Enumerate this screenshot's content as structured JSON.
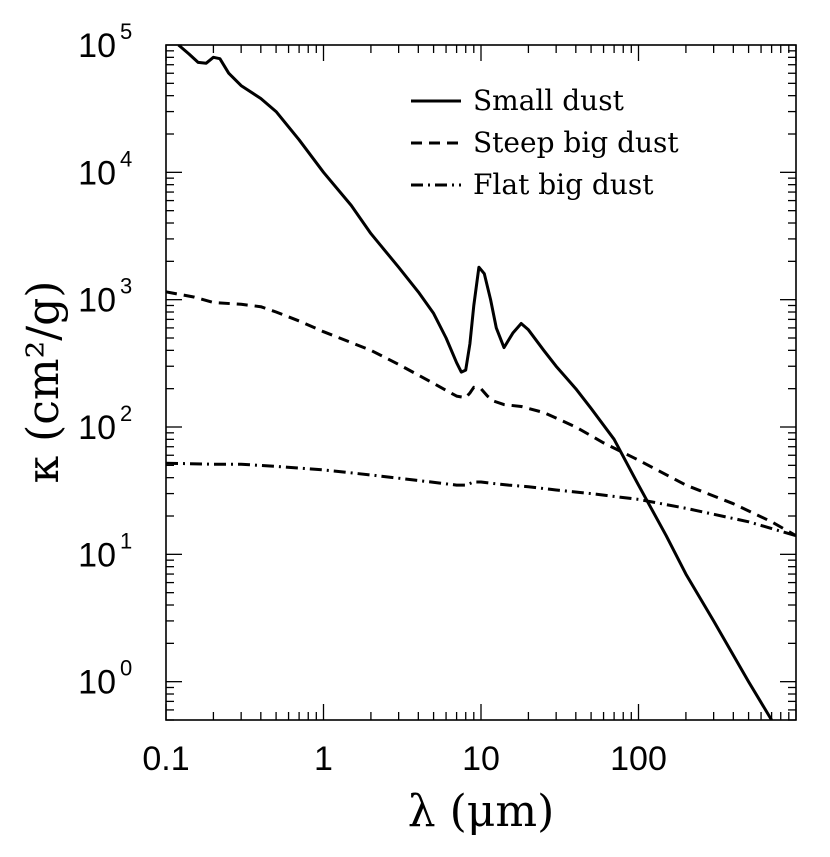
{
  "chart_data": {
    "type": "line",
    "xscale": "log",
    "yscale": "log",
    "xlim": [
      0.1,
      1000
    ],
    "ylim": [
      0.5,
      100000
    ],
    "xlabel": "λ (μm)",
    "ylabel": "κ (cm²/g)",
    "x_ticks": [
      {
        "value": 0.1,
        "label": "0.1"
      },
      {
        "value": 1,
        "label": "1"
      },
      {
        "value": 10,
        "label": "10"
      },
      {
        "value": 100,
        "label": "100"
      }
    ],
    "y_ticks": [
      {
        "value": 1,
        "base": "10",
        "exp": "0"
      },
      {
        "value": 10,
        "base": "10",
        "exp": "1"
      },
      {
        "value": 100,
        "base": "10",
        "exp": "2"
      },
      {
        "value": 1000,
        "base": "10",
        "exp": "3"
      },
      {
        "value": 10000,
        "base": "10",
        "exp": "4"
      },
      {
        "value": 100000,
        "base": "10",
        "exp": "5"
      }
    ],
    "legend_position": "top-right",
    "series": [
      {
        "name": "Small dust",
        "style": "solid",
        "x": [
          0.12,
          0.14,
          0.16,
          0.18,
          0.2,
          0.22,
          0.25,
          0.3,
          0.4,
          0.5,
          0.7,
          1.0,
          1.5,
          2.0,
          3.0,
          4.0,
          5.0,
          6.0,
          7.0,
          7.5,
          8.0,
          8.5,
          9.0,
          9.7,
          10.5,
          11.5,
          12.5,
          14.0,
          16.0,
          18.0,
          20.0,
          25.0,
          30.0,
          40.0,
          50.0,
          70.0,
          100.0,
          150.0,
          200.0,
          300.0,
          500.0,
          700.0
        ],
        "values": [
          100000,
          85000,
          73000,
          72000,
          80000,
          78000,
          60000,
          48000,
          38000,
          30000,
          18000,
          10000,
          5500,
          3300,
          1800,
          1150,
          780,
          500,
          320,
          270,
          280,
          450,
          900,
          1800,
          1600,
          1000,
          600,
          420,
          550,
          650,
          580,
          400,
          300,
          200,
          140,
          80,
          35,
          14,
          7,
          3,
          1.0,
          0.5
        ]
      },
      {
        "name": "Steep big dust",
        "style": "dashed",
        "x": [
          0.1,
          0.15,
          0.2,
          0.3,
          0.4,
          0.5,
          0.7,
          1.0,
          2.0,
          3.0,
          5.0,
          7.0,
          8.0,
          8.5,
          9.0,
          10.0,
          11.0,
          12.0,
          14.0,
          18.0,
          25.0,
          40.0,
          60.0,
          100.0,
          200.0,
          400.0,
          700.0,
          1000.0
        ],
        "values": [
          1150,
          1050,
          950,
          920,
          880,
          800,
          680,
          560,
          400,
          310,
          220,
          175,
          170,
          185,
          205,
          200,
          175,
          160,
          150,
          145,
          130,
          100,
          75,
          55,
          35,
          25,
          18,
          14
        ]
      },
      {
        "name": "Flat big dust",
        "style": "dashdot",
        "x": [
          0.1,
          0.2,
          0.3,
          0.5,
          1.0,
          2.0,
          4.0,
          7.0,
          8.0,
          9.0,
          10.0,
          12.0,
          15.0,
          20.0,
          30.0,
          50.0,
          100.0,
          200.0,
          500.0,
          1000.0
        ],
        "values": [
          52,
          51,
          51,
          49,
          46,
          42,
          38,
          35,
          35,
          37,
          37,
          36,
          35,
          34,
          32,
          30,
          27,
          23,
          18,
          14
        ]
      }
    ]
  }
}
